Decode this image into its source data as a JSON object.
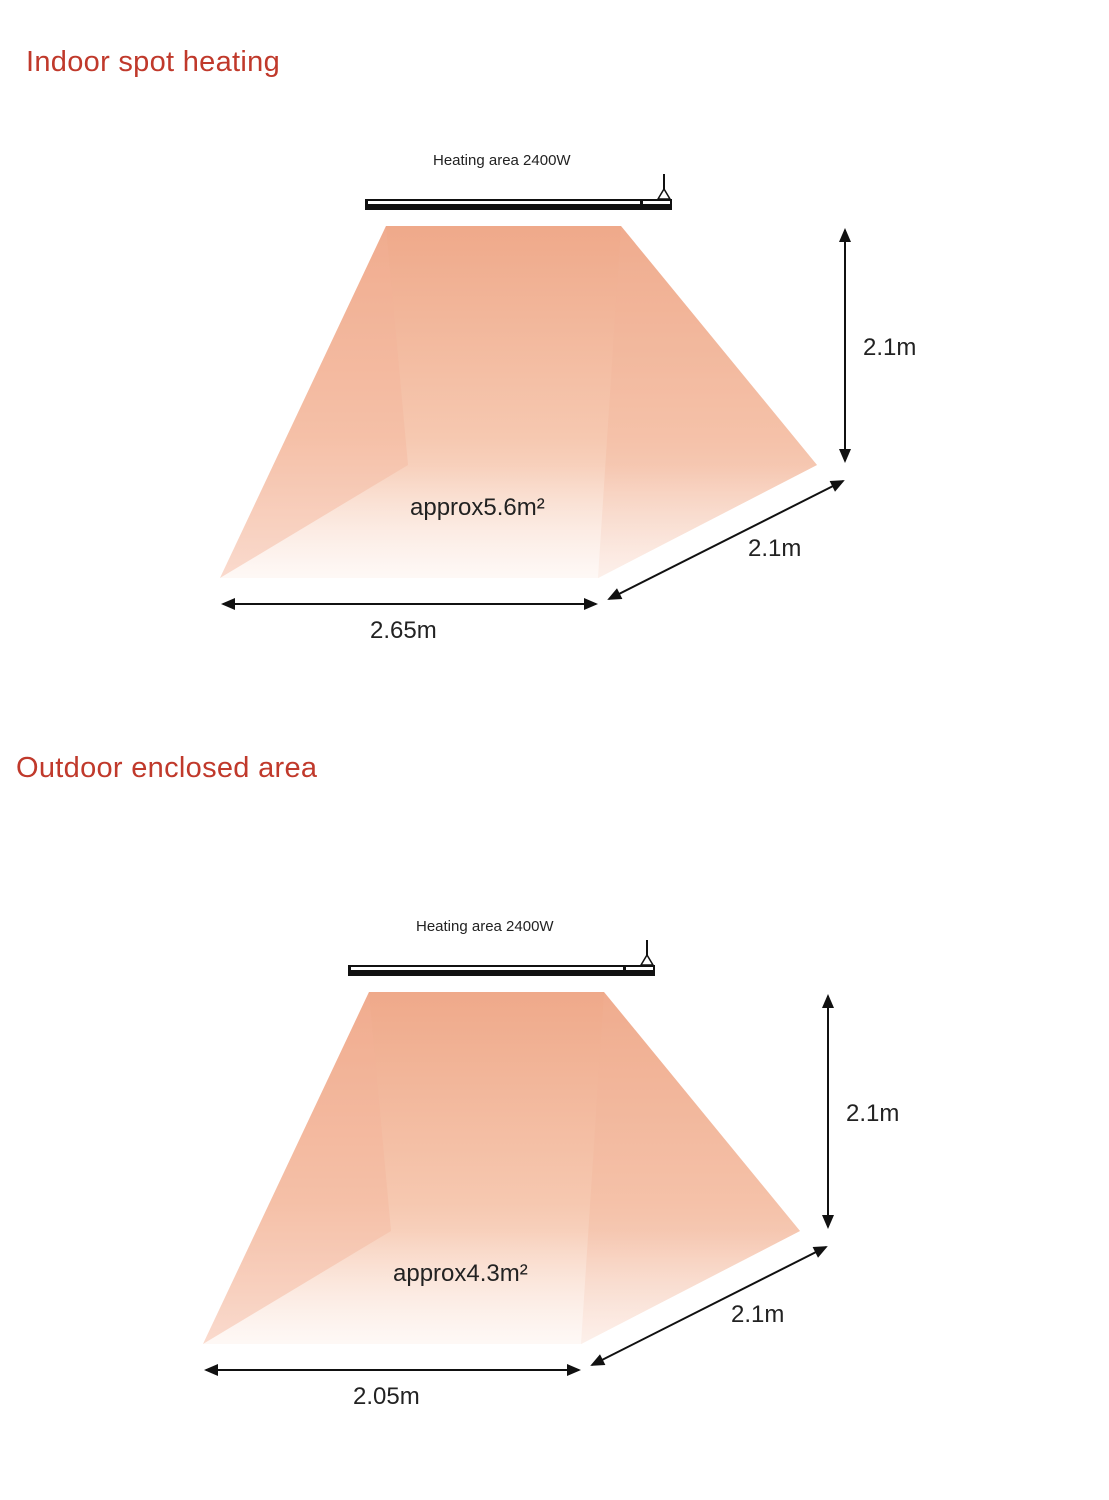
{
  "sections": [
    {
      "title": "Indoor spot heating",
      "heater_label": "Heating area  2400W",
      "area": "approx5.6m²",
      "height": "2.1m",
      "depth": "2.1m",
      "width": "2.65m"
    },
    {
      "title": "Outdoor enclosed area",
      "heater_label": "Heating area  2400W",
      "area": "approx4.3m²",
      "height": "2.1m",
      "depth": "2.1m",
      "width": "2.05m"
    }
  ],
  "colors": {
    "title": "#c0392b",
    "heat_top": "#efa98a",
    "heat_bottom": "#fdf0ea"
  }
}
